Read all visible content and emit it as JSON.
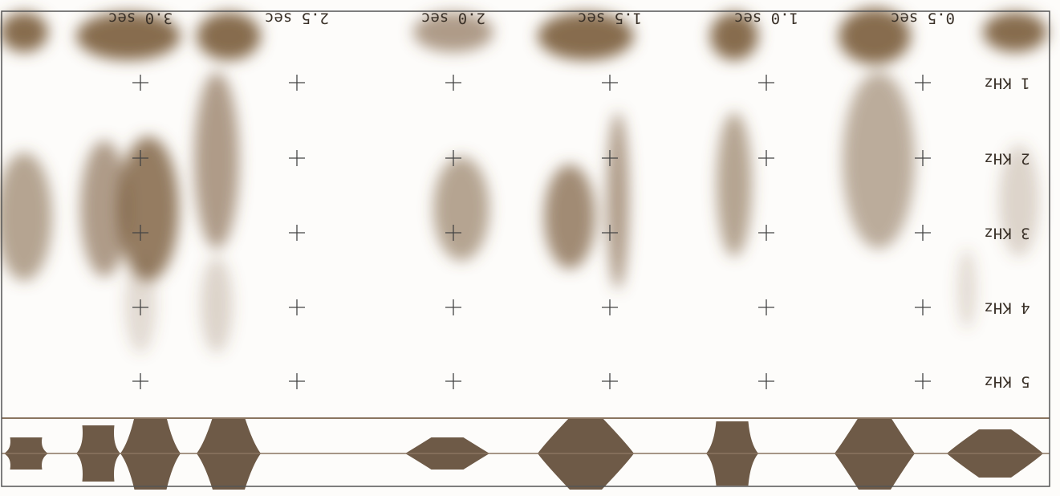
{
  "time_labels": [
    "0.5 sec",
    "1.0 sec",
    "1.5 sec",
    "2.0 sec",
    "2.5 sec",
    "3.0 sec"
  ],
  "frequency_labels": [
    "1 KHz",
    "2 KHz",
    "3 KHz",
    "4 KHz",
    "5 KHz"
  ]
}
